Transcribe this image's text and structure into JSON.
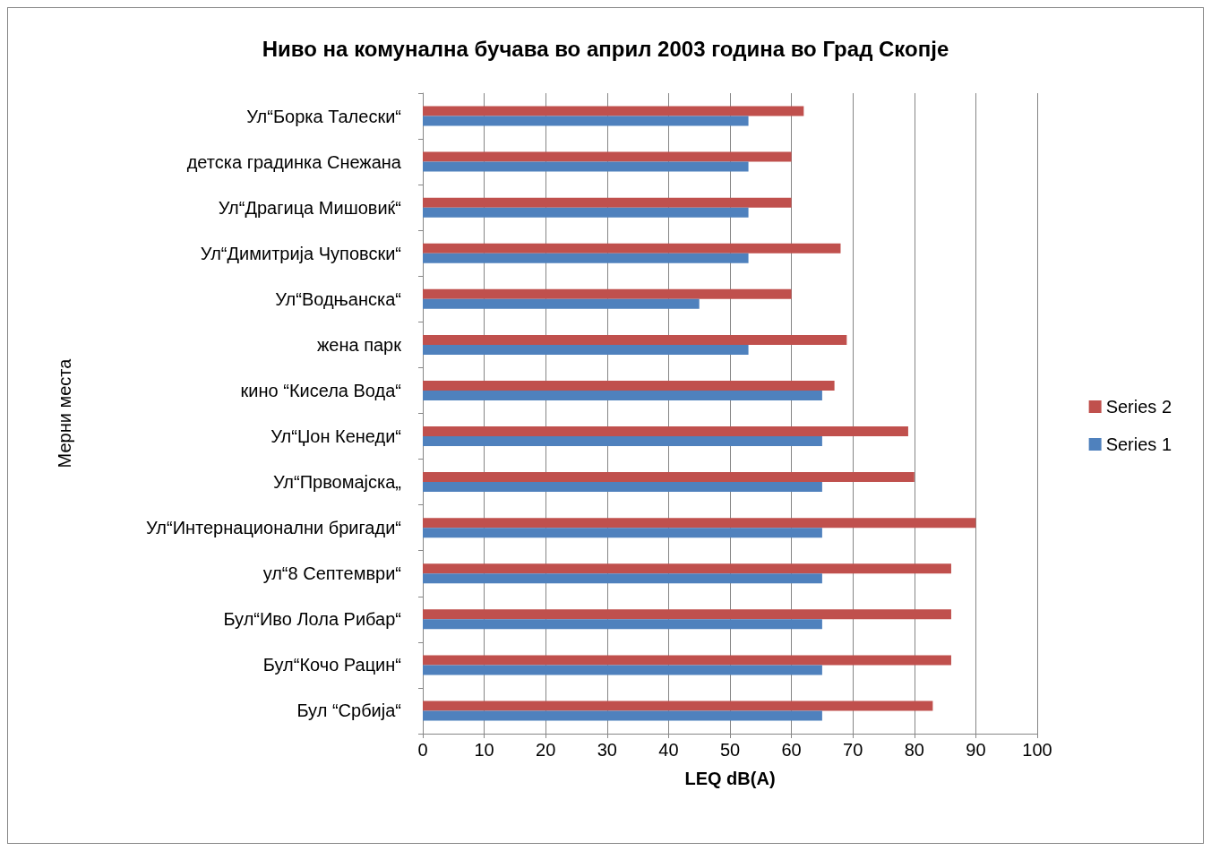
{
  "chart_data": {
    "type": "bar",
    "orientation": "horizontal",
    "title": "Ниво на комунална бучава во април 2003 година во Град Скопје",
    "xlabel": "LEQ dB(A)",
    "ylabel": "Мерни места",
    "categories": [
      "Ул“Борка Талески“",
      "детска градинка Снежана",
      "Ул“Драгица Мишовиќ“",
      "Ул“Димитрија Чуповски“",
      "Ул“Водњанска“",
      "жена парк",
      "кино “Кисела Вода“",
      "Ул“Џон Кенеди“",
      "Ул“Првомајска„",
      "Ул“Интернационални бригади“",
      "ул“8 Септември“",
      "Бул“Иво Лола Рибар“",
      "Бул“Кочо Рацин“",
      "Бул “Србија“"
    ],
    "series": [
      {
        "name": "Series 2",
        "color": "#c0504d",
        "values": [
          62,
          60,
          60,
          68,
          60,
          69,
          67,
          79,
          80,
          90,
          86,
          86,
          86,
          83
        ]
      },
      {
        "name": "Series 1",
        "color": "#4f81bd",
        "values": [
          53,
          53,
          53,
          53,
          45,
          53,
          65,
          65,
          65,
          65,
          65,
          65,
          65,
          65
        ]
      }
    ],
    "xlim": [
      0,
      100
    ],
    "xticks": [
      0,
      10,
      20,
      30,
      40,
      50,
      60,
      70,
      80,
      90,
      100
    ],
    "grid": "x",
    "legend": "right"
  }
}
